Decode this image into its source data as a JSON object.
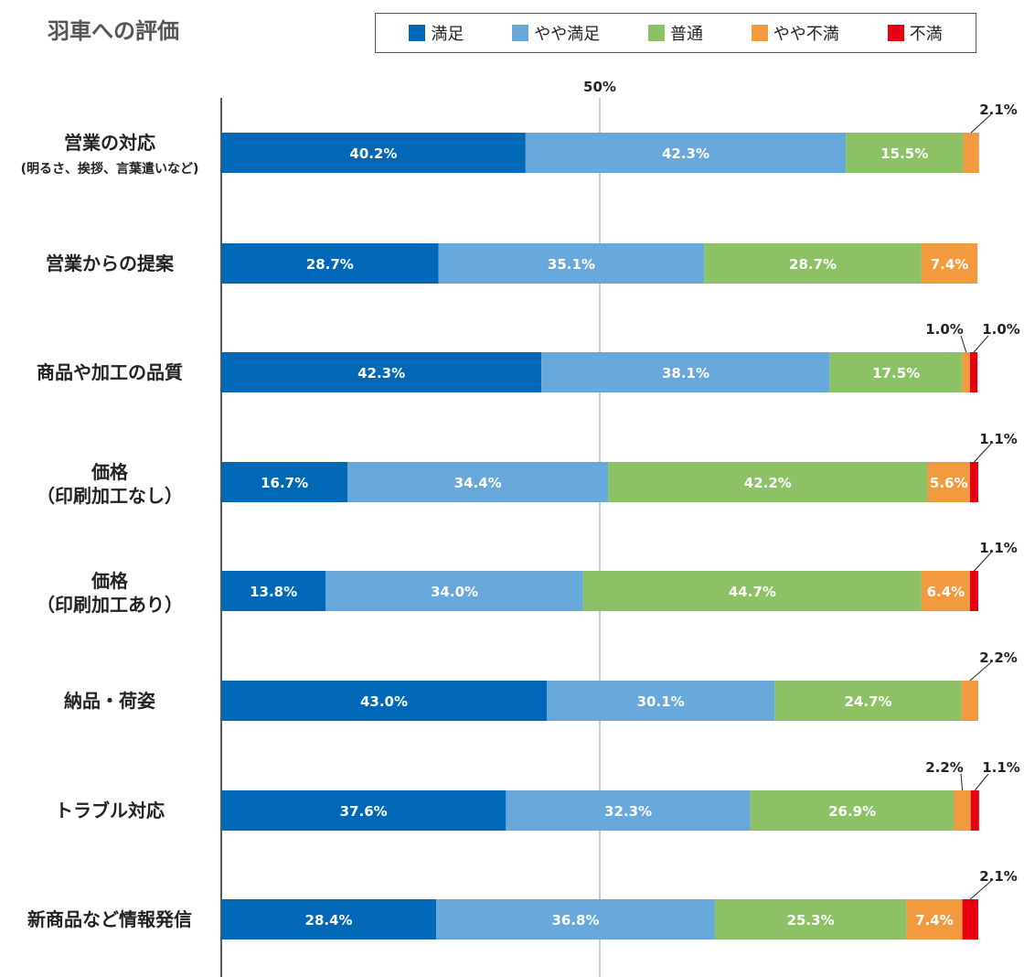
{
  "chart_data": {
    "type": "bar",
    "orientation": "horizontal",
    "stacked": true,
    "title": "羽車への評価",
    "categories": [
      {
        "label": "営業の対応",
        "sublabel": "(明るさ、挨拶、言葉遣いなど)"
      },
      {
        "label": "営業からの提案"
      },
      {
        "label": "商品や加工の品質"
      },
      {
        "label": "価格",
        "sublabel": "（印刷加工なし）"
      },
      {
        "label": "価格",
        "sublabel": "（印刷加工あり）"
      },
      {
        "label": "納品・荷姿"
      },
      {
        "label": "トラブル対応"
      },
      {
        "label": "新商品など情報発信"
      }
    ],
    "series": [
      {
        "name": "満足",
        "color": "#0068b7",
        "values": [
          40.2,
          28.7,
          42.3,
          16.7,
          13.8,
          43.0,
          37.6,
          28.4
        ]
      },
      {
        "name": "やや満足",
        "color": "#67a7da",
        "values": [
          42.3,
          35.1,
          38.1,
          34.4,
          34.0,
          30.1,
          32.3,
          36.8
        ]
      },
      {
        "name": "普通",
        "color": "#8cc265",
        "values": [
          15.5,
          28.7,
          17.5,
          42.2,
          44.7,
          24.7,
          26.9,
          25.3
        ]
      },
      {
        "name": "やや不満",
        "color": "#f29a3d",
        "values": [
          2.1,
          7.4,
          1.0,
          5.6,
          6.4,
          2.2,
          2.2,
          7.4
        ]
      },
      {
        "name": "不満",
        "color": "#e60012",
        "values": [
          0,
          0,
          1.0,
          1.1,
          1.1,
          0,
          1.1,
          2.1
        ]
      }
    ],
    "value_labels": [
      [
        "40.2%",
        "42.3%",
        "15.5%",
        "2.1%",
        ""
      ],
      [
        "28.7%",
        "35.1%",
        "28.7%",
        "7.4%",
        ""
      ],
      [
        "42.3%",
        "38.1%",
        "17.5%",
        "1.0%",
        "1.0%"
      ],
      [
        "16.7%",
        "34.4%",
        "42.2%",
        "5.6%",
        "1.1%"
      ],
      [
        "13.8%",
        "34.0%",
        "44.7%",
        "6.4%",
        "1.1%"
      ],
      [
        "43.0%",
        "30.1%",
        "24.7%",
        "2.2%",
        ""
      ],
      [
        "37.6%",
        "32.3%",
        "26.9%",
        "2.2%",
        "1.1%"
      ],
      [
        "28.4%",
        "36.8%",
        "25.3%",
        "7.4%",
        "2.1%"
      ]
    ],
    "reference_line": {
      "value": 50,
      "label": "50%"
    },
    "xlim": [
      0,
      100
    ],
    "legend_position": "top-right"
  }
}
